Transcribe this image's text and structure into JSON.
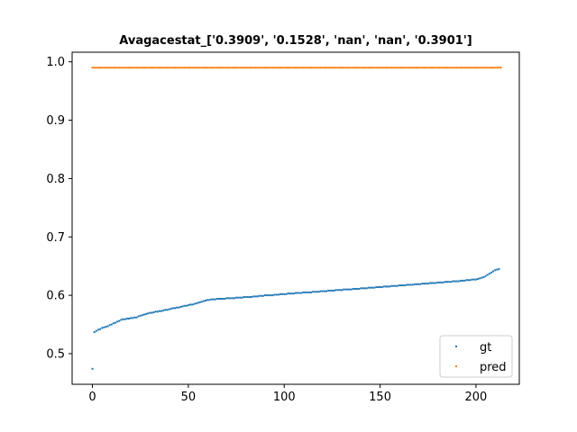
{
  "chart_data": {
    "type": "scatter",
    "title": "Avagacestat_['0.3909', '0.1528', 'nan', 'nan', '0.3901']",
    "xlabel": "",
    "ylabel": "",
    "xlim": [
      -10.6,
      222.6
    ],
    "ylim": [
      0.4475,
      1.0165
    ],
    "xticks": [
      0,
      50,
      100,
      150,
      200
    ],
    "yticks": [
      0.5,
      0.6,
      0.7,
      0.8,
      0.9,
      1.0
    ],
    "xtick_labels": [
      "0",
      "50",
      "100",
      "150",
      "200"
    ],
    "ytick_labels": [
      "0.5",
      "0.6",
      "0.7",
      "0.8",
      "0.9",
      "1.0"
    ],
    "grid": false,
    "legend_position": "lower-right",
    "series": [
      {
        "name": "gt",
        "color": "#1f77b4",
        "x_start": 0,
        "x_step": 1,
        "values": [
          0.474,
          0.537,
          0.539,
          0.541,
          0.542,
          0.544,
          0.545,
          0.546,
          0.547,
          0.549,
          0.55,
          0.552,
          0.553,
          0.555,
          0.556,
          0.558,
          0.559,
          0.559,
          0.56,
          0.56,
          0.561,
          0.561,
          0.562,
          0.562,
          0.564,
          0.565,
          0.566,
          0.567,
          0.568,
          0.569,
          0.57,
          0.57,
          0.571,
          0.572,
          0.572,
          0.573,
          0.573,
          0.574,
          0.575,
          0.575,
          0.576,
          0.577,
          0.578,
          0.578,
          0.579,
          0.579,
          0.58,
          0.581,
          0.582,
          0.582,
          0.583,
          0.584,
          0.584,
          0.585,
          0.586,
          0.587,
          0.588,
          0.589,
          0.59,
          0.591,
          0.592,
          0.592,
          0.593,
          0.593,
          0.593,
          0.594,
          0.594,
          0.594,
          0.594,
          0.594,
          0.595,
          0.595,
          0.595,
          0.595,
          0.595,
          0.596,
          0.596,
          0.596,
          0.596,
          0.597,
          0.597,
          0.597,
          0.597,
          0.597,
          0.598,
          0.598,
          0.598,
          0.599,
          0.599,
          0.599,
          0.6,
          0.6,
          0.6,
          0.6,
          0.6,
          0.601,
          0.601,
          0.601,
          0.602,
          0.602,
          0.602,
          0.602,
          0.603,
          0.603,
          0.603,
          0.603,
          0.604,
          0.604,
          0.604,
          0.604,
          0.605,
          0.605,
          0.605,
          0.605,
          0.605,
          0.606,
          0.606,
          0.606,
          0.606,
          0.607,
          0.607,
          0.607,
          0.607,
          0.608,
          0.608,
          0.608,
          0.608,
          0.609,
          0.609,
          0.609,
          0.609,
          0.61,
          0.61,
          0.61,
          0.61,
          0.61,
          0.611,
          0.611,
          0.611,
          0.611,
          0.612,
          0.612,
          0.612,
          0.612,
          0.613,
          0.613,
          0.613,
          0.613,
          0.614,
          0.614,
          0.614,
          0.614,
          0.615,
          0.615,
          0.615,
          0.615,
          0.616,
          0.616,
          0.616,
          0.616,
          0.617,
          0.617,
          0.617,
          0.617,
          0.618,
          0.618,
          0.618,
          0.618,
          0.619,
          0.619,
          0.619,
          0.619,
          0.62,
          0.62,
          0.62,
          0.62,
          0.621,
          0.621,
          0.621,
          0.621,
          0.622,
          0.622,
          0.622,
          0.622,
          0.623,
          0.623,
          0.623,
          0.623,
          0.624,
          0.624,
          0.624,
          0.624,
          0.625,
          0.625,
          0.625,
          0.626,
          0.626,
          0.626,
          0.627,
          0.627,
          0.627,
          0.628,
          0.629,
          0.63,
          0.631,
          0.633,
          0.635,
          0.637,
          0.639,
          0.641,
          0.643,
          0.644,
          0.645
        ]
      },
      {
        "name": "pred",
        "color": "#ff7f0e",
        "x_start": 0,
        "x_step": 1,
        "values": [
          0.99,
          0.99,
          0.99,
          0.99,
          0.99,
          0.99,
          0.99,
          0.99,
          0.99,
          0.99,
          0.99,
          0.99,
          0.99,
          0.99,
          0.99,
          0.99,
          0.99,
          0.99,
          0.99,
          0.99,
          0.99,
          0.99,
          0.99,
          0.99,
          0.99,
          0.99,
          0.99,
          0.99,
          0.99,
          0.99,
          0.99,
          0.99,
          0.99,
          0.99,
          0.99,
          0.99,
          0.99,
          0.99,
          0.99,
          0.99,
          0.99,
          0.99,
          0.99,
          0.99,
          0.99,
          0.99,
          0.99,
          0.99,
          0.99,
          0.99,
          0.99,
          0.99,
          0.99,
          0.99,
          0.99,
          0.99,
          0.99,
          0.99,
          0.99,
          0.99,
          0.99,
          0.99,
          0.99,
          0.99,
          0.99,
          0.99,
          0.99,
          0.99,
          0.99,
          0.99,
          0.99,
          0.99,
          0.99,
          0.99,
          0.99,
          0.99,
          0.99,
          0.99,
          0.99,
          0.99,
          0.99,
          0.99,
          0.99,
          0.99,
          0.99,
          0.99,
          0.99,
          0.99,
          0.99,
          0.99,
          0.99,
          0.99,
          0.99,
          0.99,
          0.99,
          0.99,
          0.99,
          0.99,
          0.99,
          0.99,
          0.99,
          0.99,
          0.99,
          0.99,
          0.99,
          0.99,
          0.99,
          0.99,
          0.99,
          0.99,
          0.99,
          0.99,
          0.99,
          0.99,
          0.99,
          0.99,
          0.99,
          0.99,
          0.99,
          0.99,
          0.99,
          0.99,
          0.99,
          0.99,
          0.99,
          0.99,
          0.99,
          0.99,
          0.99,
          0.99,
          0.99,
          0.99,
          0.99,
          0.99,
          0.99,
          0.99,
          0.99,
          0.99,
          0.99,
          0.99,
          0.99,
          0.99,
          0.99,
          0.99,
          0.99,
          0.99,
          0.99,
          0.99,
          0.99,
          0.99,
          0.99,
          0.99,
          0.99,
          0.99,
          0.99,
          0.99,
          0.99,
          0.99,
          0.99,
          0.99,
          0.99,
          0.99,
          0.99,
          0.99,
          0.99,
          0.99,
          0.99,
          0.99,
          0.99,
          0.99,
          0.99,
          0.99,
          0.99,
          0.99,
          0.99,
          0.99,
          0.99,
          0.99,
          0.99,
          0.99,
          0.99,
          0.99,
          0.99,
          0.99,
          0.99,
          0.99,
          0.99,
          0.99,
          0.99,
          0.99,
          0.99,
          0.99,
          0.99,
          0.99,
          0.99,
          0.99,
          0.99,
          0.99,
          0.99,
          0.99,
          0.99,
          0.99,
          0.99,
          0.99,
          0.99,
          0.99,
          0.99,
          0.99,
          0.99,
          0.99,
          0.99,
          0.99,
          0.99,
          0.99
        ]
      }
    ]
  }
}
